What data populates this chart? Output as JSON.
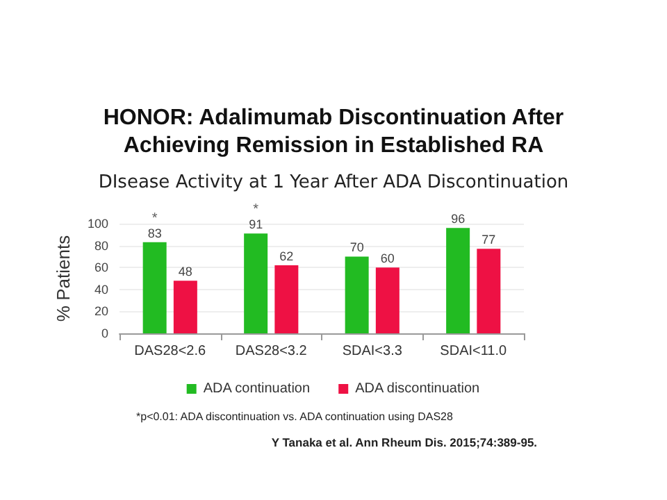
{
  "chart_data": {
    "type": "bar",
    "title": "HONOR: Adalimumab Discontinuation After\nAchieving Remission in Established RA",
    "subtitle": "DIsease Activity at 1 Year After ADA Discontinuation",
    "ylabel": "% Patients",
    "categories": [
      "DAS28<2.6",
      "DAS28<3.2",
      "SDAI<3.3",
      "SDAI<11.0"
    ],
    "series": [
      {
        "name": "ADA continuation",
        "color": "#22bb22",
        "values": [
          83,
          91,
          70,
          96
        ]
      },
      {
        "name": "ADA discontinuation",
        "color": "#ee1144",
        "values": [
          48,
          62,
          60,
          77
        ]
      }
    ],
    "ylim": [
      0,
      100
    ],
    "yticks": [
      0,
      20,
      40,
      60,
      80,
      100
    ],
    "grid": "y",
    "legend": "bottom",
    "data_labels": true,
    "annotations": [
      {
        "text": "*",
        "x": "DAS28<2.6",
        "y": 83
      },
      {
        "text": "*",
        "x": "DAS28<3.2",
        "y": 91
      },
      "*p<0.01: ADA discontinuation vs. ADA continuation using DAS28",
      "Y Tanaka et al. Ann Rheum Dis. 2015;74:389-95."
    ]
  }
}
